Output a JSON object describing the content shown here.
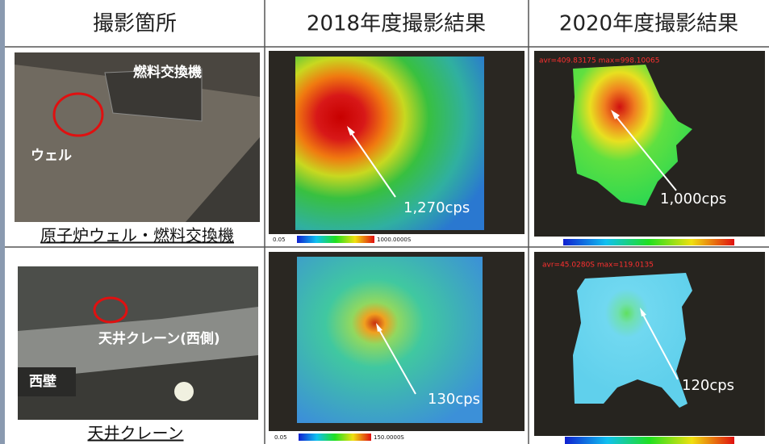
{
  "header": {
    "columns": [
      "撮影箇所",
      "2018年度撮影結果",
      "2020年度撮影結果"
    ]
  },
  "rows": [
    {
      "photo_labels": [
        "燃料交換機",
        "ウェル"
      ],
      "caption": "原子炉ウェル・燃料交換機",
      "result_2018": {
        "reading": "1,270cps",
        "scale_min": "0.05",
        "scale_max": "1000.0000S"
      },
      "result_2020": {
        "reading": "1,000cps",
        "stats": "avr=409.83175 max=998.10065"
      }
    },
    {
      "photo_labels": [
        "天井クレーン(西側)",
        "西壁"
      ],
      "caption": "天井クレーン",
      "result_2018": {
        "reading": "130cps",
        "scale_min": "0.05",
        "scale_max": "150.0000S"
      },
      "result_2020": {
        "reading": "120cps",
        "stats": "avr=45.0280S max=119.0135"
      }
    }
  ]
}
